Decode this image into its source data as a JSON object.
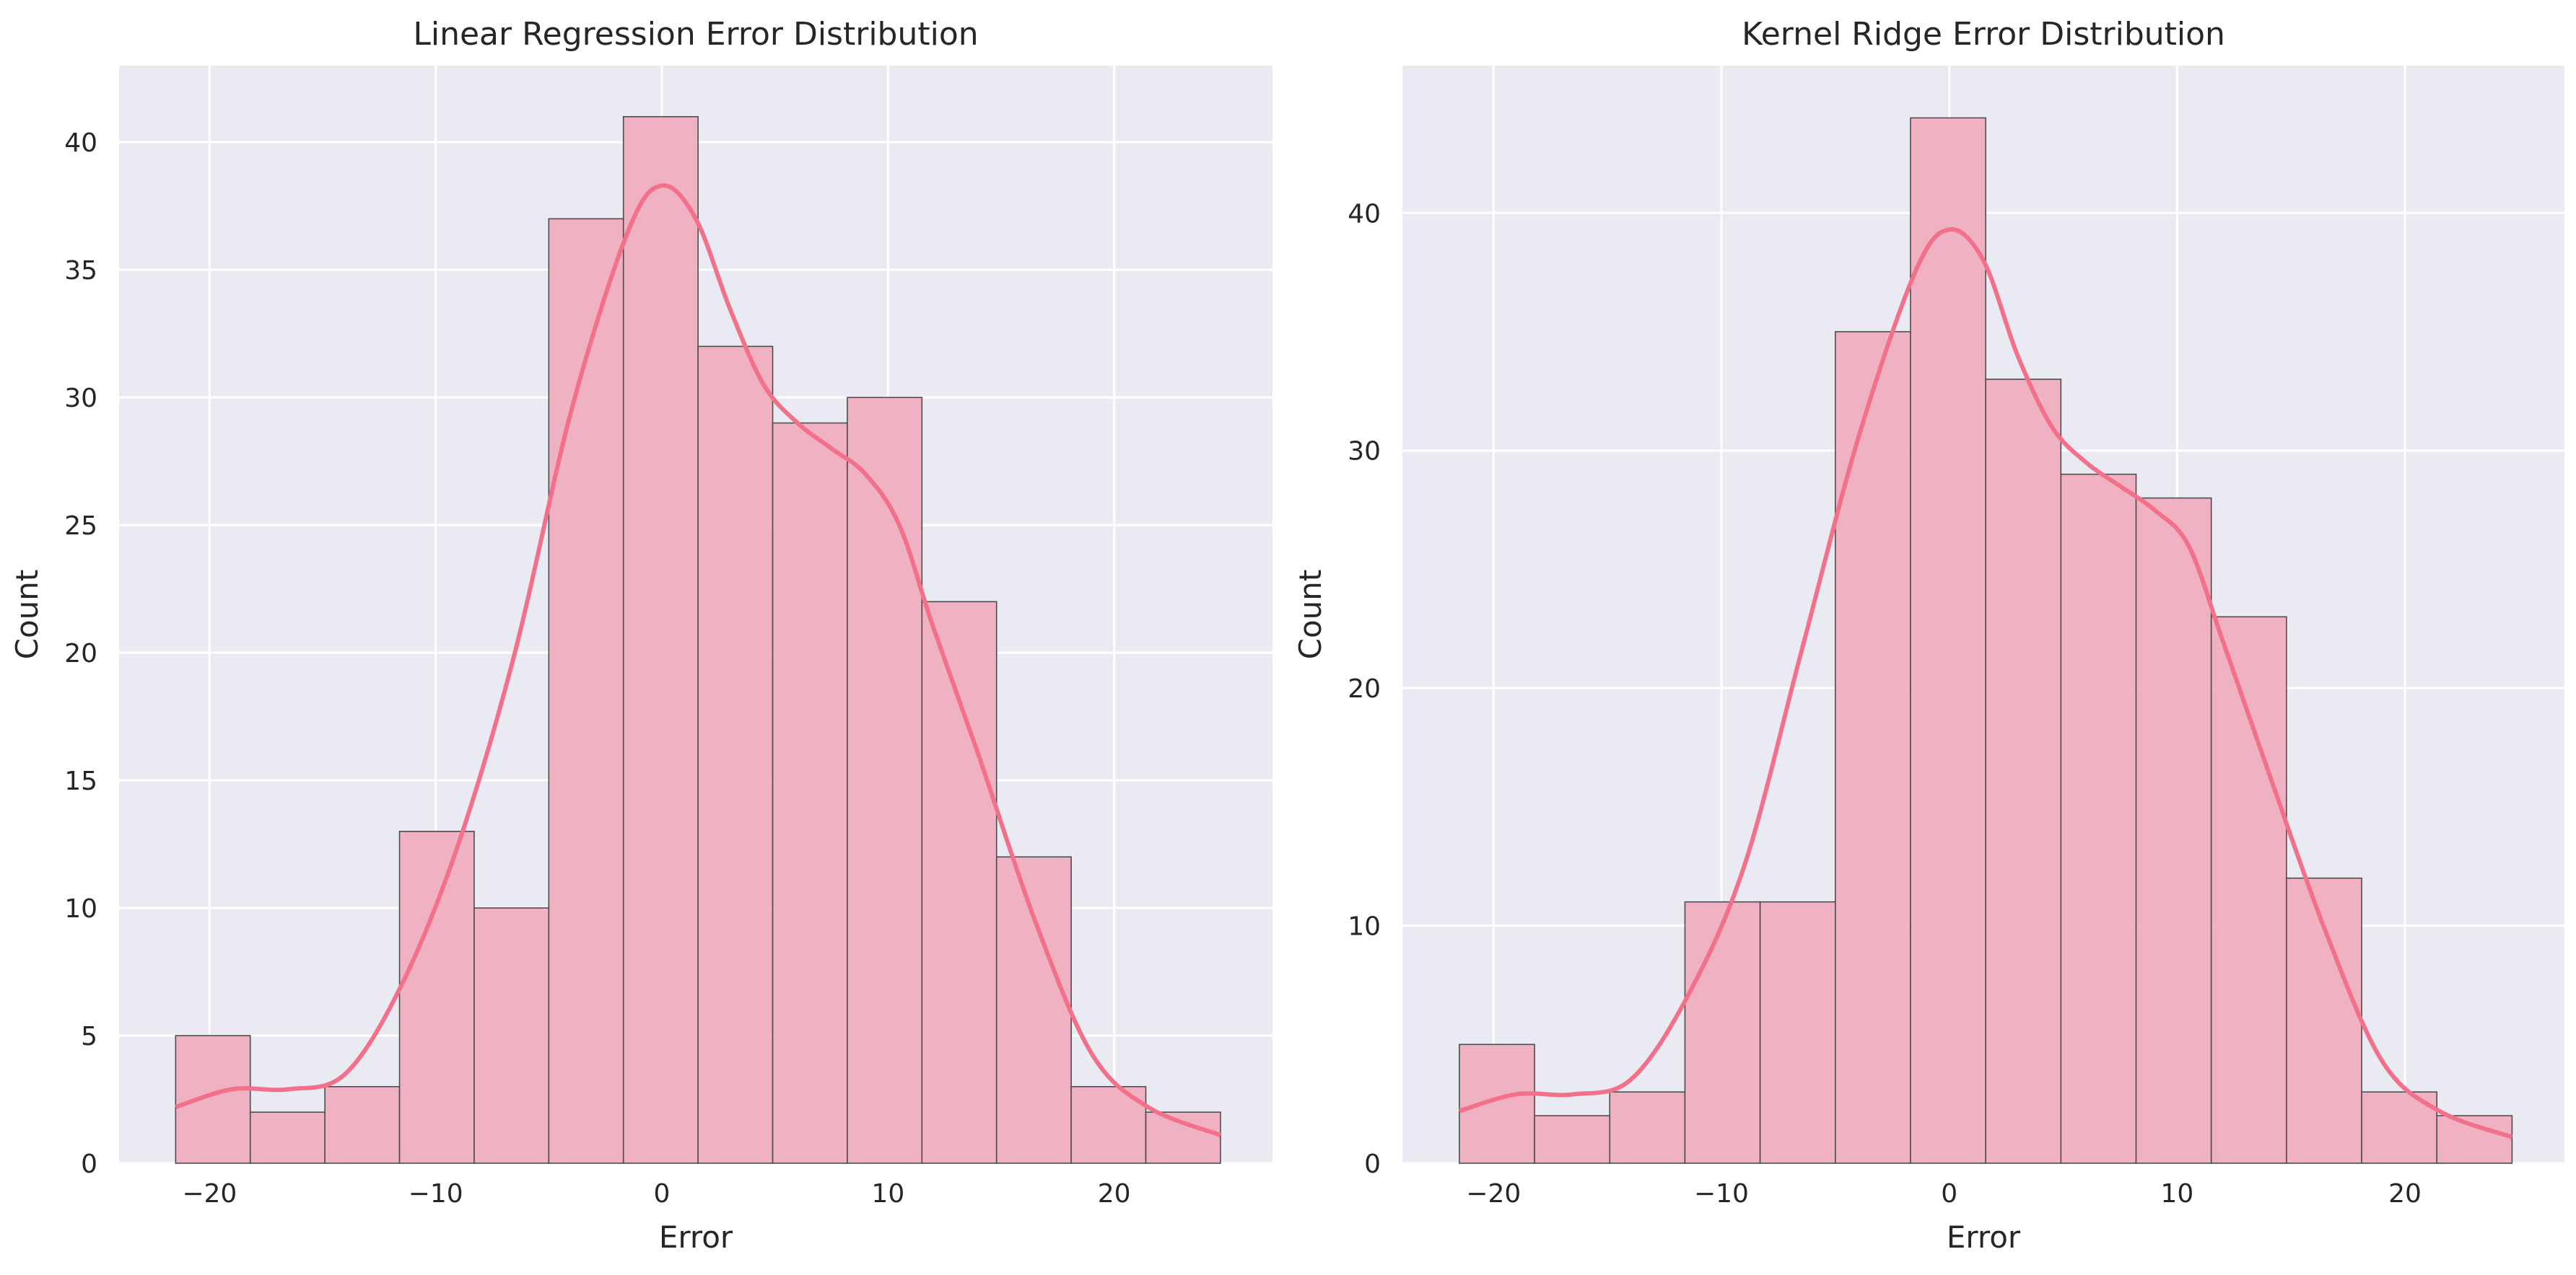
{
  "chart_data": [
    {
      "type": "bar",
      "title": "Linear Regression Error Distribution",
      "xlabel": "Error",
      "ylabel": "Count",
      "xlim": [
        -24.0,
        27.0
      ],
      "ylim": [
        0,
        43
      ],
      "xticks": [
        -20,
        -10,
        0,
        10,
        20
      ],
      "xtick_labels": [
        "−20",
        "−10",
        "0",
        "10",
        "20"
      ],
      "yticks": [
        0,
        5,
        10,
        15,
        20,
        25,
        30,
        35,
        40
      ],
      "ytick_labels": [
        "0",
        "5",
        "10",
        "15",
        "20",
        "25",
        "30",
        "35",
        "40"
      ],
      "grid": true,
      "bin_start": -21.5,
      "bin_width": 3.3,
      "values": [
        5,
        2,
        3,
        13,
        10,
        37,
        41,
        32,
        29,
        30,
        22,
        12,
        3,
        2
      ],
      "kde": {
        "x": [
          -21.5,
          -19.0,
          -16.5,
          -14.0,
          -11.5,
          -9.0,
          -6.5,
          -4.0,
          -1.5,
          0.0,
          1.5,
          3.0,
          4.5,
          6.0,
          7.5,
          9.0,
          10.5,
          12.0,
          14.0,
          16.5,
          19.0,
          21.5,
          24.7
        ],
        "y": [
          2.2,
          2.9,
          2.9,
          3.5,
          7.0,
          12.5,
          20.0,
          29.5,
          36.5,
          38.3,
          37.0,
          33.5,
          30.5,
          29.0,
          28.0,
          27.0,
          25.0,
          21.0,
          16.0,
          9.5,
          4.3,
          2.2,
          1.1
        ]
      },
      "colors": {
        "bar_fill": "#f0aebf",
        "bar_edge": "#4d4d4d",
        "kde": "#f2708a",
        "axes_bg": "#eaeaf2",
        "grid": "#ffffff"
      }
    },
    {
      "type": "bar",
      "title": "Kernel Ridge Error Distribution",
      "xlabel": "Error",
      "ylabel": "Count",
      "xlim": [
        -24.0,
        27.0
      ],
      "ylim": [
        0,
        46.2
      ],
      "xticks": [
        -20,
        -10,
        0,
        10,
        20
      ],
      "xtick_labels": [
        "−20",
        "−10",
        "0",
        "10",
        "20"
      ],
      "yticks": [
        0,
        10,
        20,
        30,
        40
      ],
      "ytick_labels": [
        "0",
        "10",
        "20",
        "30",
        "40"
      ],
      "grid": true,
      "bin_start": -21.5,
      "bin_width": 3.3,
      "values": [
        5,
        2,
        3,
        11,
        11,
        35,
        44,
        33,
        29,
        28,
        23,
        12,
        3,
        2
      ],
      "kde": {
        "x": [
          -21.5,
          -19.0,
          -16.5,
          -14.0,
          -11.5,
          -9.0,
          -6.5,
          -4.0,
          -1.5,
          0.0,
          1.5,
          3.0,
          4.5,
          6.0,
          7.5,
          9.0,
          10.5,
          12.0,
          14.0,
          16.5,
          19.0,
          21.5,
          24.7
        ],
        "y": [
          2.2,
          2.9,
          2.9,
          3.5,
          7.0,
          12.5,
          21.5,
          30.5,
          37.5,
          39.3,
          38.0,
          34.0,
          31.0,
          29.5,
          28.5,
          27.5,
          26.0,
          22.0,
          16.5,
          9.8,
          4.3,
          2.2,
          1.1
        ]
      },
      "colors": {
        "bar_fill": "#f0aebf",
        "bar_edge": "#4d4d4d",
        "kde": "#f2708a",
        "axes_bg": "#eaeaf2",
        "grid": "#ffffff"
      }
    }
  ]
}
